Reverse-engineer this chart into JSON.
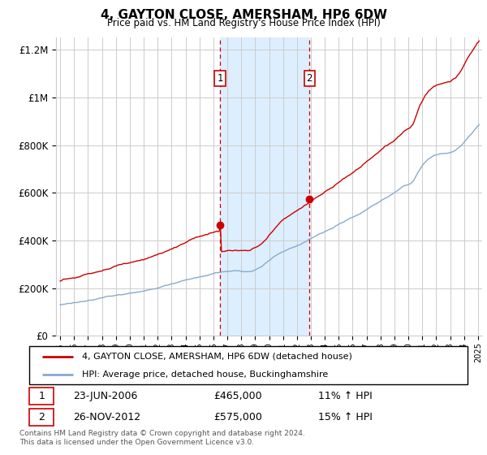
{
  "title": "4, GAYTON CLOSE, AMERSHAM, HP6 6DW",
  "subtitle": "Price paid vs. HM Land Registry's House Price Index (HPI)",
  "footer": "Contains HM Land Registry data © Crown copyright and database right 2024.\nThis data is licensed under the Open Government Licence v3.0.",
  "legend_line1": "4, GAYTON CLOSE, AMERSHAM, HP6 6DW (detached house)",
  "legend_line2": "HPI: Average price, detached house, Buckinghamshire",
  "sale1_date": "23-JUN-2006",
  "sale1_price": "£465,000",
  "sale1_hpi": "11% ↑ HPI",
  "sale2_date": "26-NOV-2012",
  "sale2_price": "£575,000",
  "sale2_hpi": "15% ↑ HPI",
  "sale1_year": 2006.47,
  "sale1_value": 465000,
  "sale2_year": 2012.9,
  "sale2_value": 575000,
  "red_color": "#cc0000",
  "blue_color": "#88aacc",
  "shade_color": "#ddeeff",
  "grid_color": "#cccccc",
  "ylim_min": 0,
  "ylim_max": 1250000,
  "xlim_min": 1994.7,
  "xlim_max": 2025.3
}
